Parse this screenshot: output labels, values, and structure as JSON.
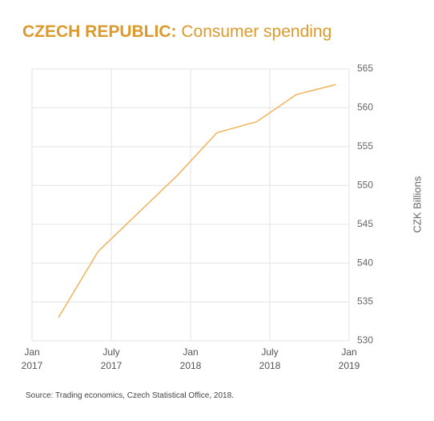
{
  "chart_data": {
    "type": "line",
    "title": "CZECH REPUBLIC:",
    "subtitle": "Consumer spending",
    "y_axis_label": "CZK Billions",
    "source": "Source: Trading economics, Czech Statistical Office, 2018.",
    "x": [
      "2017-03",
      "2017-06",
      "2017-12",
      "2018-03",
      "2018-06",
      "2018-09",
      "2018-12"
    ],
    "series": [
      {
        "name": "Consumer spending",
        "color": "#f0b45a",
        "values": [
          533.0,
          541.5,
          551.3,
          556.8,
          558.2,
          561.7,
          563.0
        ]
      }
    ],
    "xlim": [
      "2017-01",
      "2019-01"
    ],
    "xticks": [
      {
        "value": "2017-01",
        "label": "Jan 2017"
      },
      {
        "value": "2017-07",
        "label": "July 2017"
      },
      {
        "value": "2018-01",
        "label": "Jan 2018"
      },
      {
        "value": "2018-07",
        "label": "July 2018"
      },
      {
        "value": "2019-01",
        "label": "Jan 2019"
      }
    ],
    "ylim": [
      530,
      565
    ],
    "yticks": [
      530,
      535,
      540,
      545,
      550,
      555,
      560,
      565
    ],
    "grid": true,
    "y_axis_side": "right"
  }
}
